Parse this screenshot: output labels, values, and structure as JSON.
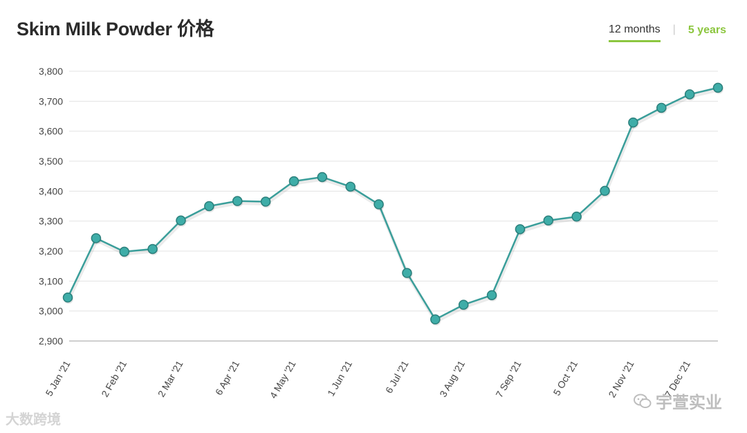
{
  "header": {
    "title": "Skim Milk Powder 价格",
    "tabs": [
      {
        "label": "12 months",
        "active": true
      },
      {
        "label": "5 years",
        "active": false
      }
    ],
    "separator": "|"
  },
  "colors": {
    "line": "#3a9e9a",
    "marker_fill": "#3fada8",
    "marker_stroke": "#2b7f7b",
    "grid": "#e3e3e3",
    "tab_accent": "#8cc63f"
  },
  "watermarks": {
    "left": "大数跨境",
    "right": "宇萱实业",
    "right_icon": "wechat-icon"
  },
  "chart_data": {
    "type": "line",
    "title": "Skim Milk Powder 价格",
    "xlabel": "",
    "ylabel": "",
    "ylim": [
      2900,
      3800
    ],
    "yticks": [
      "2,900",
      "3,000",
      "3,100",
      "3,200",
      "3,300",
      "3,400",
      "3,500",
      "3,600",
      "3,700",
      "3,800"
    ],
    "x_tick_labels": [
      "5 Jan '21",
      "2 Feb '21",
      "2 Mar '21",
      "6 Apr '21",
      "4 May '21",
      "1 Jun '21",
      "6 Jul '21",
      "3 Aug '21",
      "7 Sep '21",
      "5 Oct '21",
      "2 Nov '21",
      "7 Dec '21"
    ],
    "grid": true,
    "legend": "none",
    "series": [
      {
        "values": [
          3045,
          3243,
          3198,
          3207,
          3302,
          3350,
          3367,
          3365,
          3433,
          3447,
          3415,
          3356,
          3127,
          2972,
          3021,
          3053,
          3273,
          3302,
          3315,
          3401,
          3629,
          3678,
          3723,
          3745
        ]
      }
    ]
  }
}
